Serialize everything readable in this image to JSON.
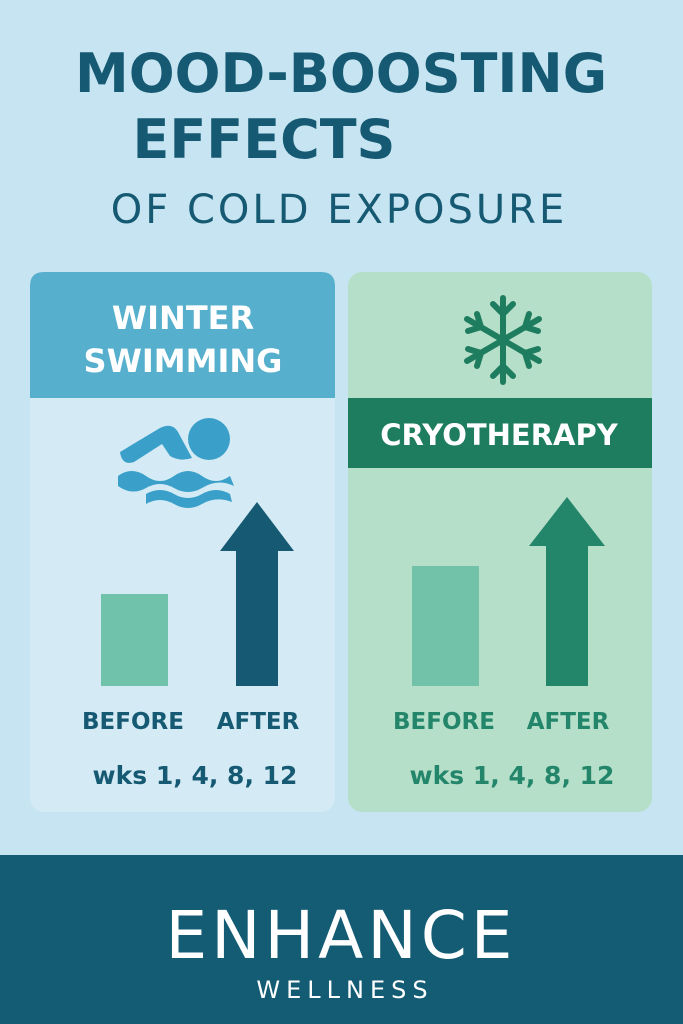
{
  "header": {
    "title_lines": [
      "MOOD-BOOSTING",
      "EFFECTS"
    ],
    "subtitle": "OF COLD EXPOSURE"
  },
  "panels": [
    {
      "title_lines": [
        "WINTER",
        "SWIMMING"
      ],
      "before": "BEFORE",
      "after": "AFTER",
      "note": "wks 1, 4, 8, 12"
    },
    {
      "title_lines": [
        "CRYOTHERAPY"
      ],
      "before": "BEFORE",
      "after": "AFTER",
      "note": "wks 1, 4, 8, 12"
    }
  ],
  "footer": {
    "brand": "ENHANCE",
    "tagline": "WELLNESS"
  }
}
